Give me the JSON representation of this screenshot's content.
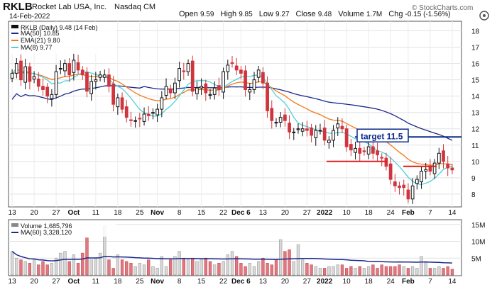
{
  "header": {
    "ticker": "RKLB",
    "company": "Rocket Lab USA, Inc.",
    "exchange": "Nasdaq CM",
    "date": "14-Feb-2022",
    "open_label": "Open",
    "open": "9.59",
    "high_label": "High",
    "high": "9.85",
    "low_label": "Low",
    "low": "9.27",
    "close_label": "Close",
    "close": "9.48",
    "volume_label": "Volume",
    "volume": "1.7M",
    "chg_label": "Chg",
    "chg": "-0.15 (-1.56%)",
    "watermark": "© StockCharts.com"
  },
  "legend": {
    "price": "RKLB (Daily) 9.48 (14 Feb)",
    "ma50": "MA(50) 10.85",
    "ema21": "EMA(21) 9.80",
    "ma8": "MA(8) 9.77",
    "volume": "Volume 1,685,796",
    "ma60": "MA(60) 3,328,120"
  },
  "annotation": {
    "target_label": "target 11.5",
    "target_level": 11.5,
    "support_level": 10.0,
    "support2_level": 9.7
  },
  "colors": {
    "up": "#111111",
    "down": "#d0343c",
    "ma50": "#1a2a8c",
    "ema21": "#f07a18",
    "ma8": "#4fd0d8",
    "vol_down": "#e07880",
    "vol_up": "#d8d8d8",
    "vol_ma": "#1a2a8c",
    "target": "#0b2a8c",
    "support": "#e01b1b"
  },
  "chart_data": [
    {
      "type": "candlestick",
      "title": "RKLB (Daily)",
      "ylim": [
        7.3,
        18.5
      ],
      "yticks": [
        8,
        9,
        10,
        11,
        12,
        13,
        14,
        15,
        16,
        17,
        18
      ],
      "xlabels": [
        "13",
        "20",
        "27",
        "Oct",
        "11",
        "18",
        "25",
        "Nov",
        "8",
        "15",
        "22",
        "Dec 6",
        "13",
        "20",
        "27",
        "2022",
        "10",
        "18",
        "24",
        "Feb",
        "7",
        "14"
      ],
      "closes": [
        15.4,
        16.0,
        15.0,
        15.8,
        14.9,
        15.2,
        14.6,
        14.4,
        14.0,
        14.1,
        15.5,
        15.7,
        16.0,
        15.3,
        16.2,
        15.6,
        15.3,
        14.3,
        14.9,
        15.0,
        15.3,
        15.3,
        14.6,
        13.5,
        13.9,
        13.2,
        12.7,
        12.5,
        12.5,
        12.6,
        12.9,
        12.8,
        13.0,
        13.2,
        13.9,
        14.6,
        14.2,
        14.8,
        15.7,
        15.5,
        16.0,
        14.3,
        14.5,
        14.6,
        14.2,
        14.1,
        14.5,
        14.4,
        15.5,
        15.9,
        16.0,
        15.6,
        15.4,
        14.4,
        14.4,
        15.0,
        15.6,
        14.8,
        13.1,
        12.5,
        12.4,
        12.7,
        12.5,
        11.8,
        11.8,
        12.0,
        12.0,
        11.9,
        11.6,
        11.9,
        11.9,
        11.3,
        11.3,
        11.9,
        12.3,
        12.0,
        10.9,
        10.7,
        10.8,
        10.5,
        10.6,
        10.9,
        10.5,
        10.4,
        10.2,
        9.7,
        8.9,
        8.5,
        8.4,
        8.4,
        7.7,
        8.5,
        8.9,
        9.4,
        9.5,
        9.4,
        9.9,
        10.5,
        10.0,
        9.6,
        9.48
      ],
      "bars": 101
    },
    {
      "type": "bar",
      "title": "Volume",
      "ylim": [
        0,
        16000000
      ],
      "yticks_labels": [
        "5M",
        "10M",
        "15M"
      ],
      "yticks": [
        5000000,
        10000000,
        15000000
      ],
      "volumes": [
        7.0,
        5.0,
        4.5,
        4.0,
        3.5,
        4.5,
        3.0,
        4.0,
        3.0,
        3.5,
        5.0,
        6.5,
        7.0,
        4.0,
        6.0,
        3.5,
        6.5,
        11.0,
        4.5,
        5.0,
        6.5,
        14.5,
        4.5,
        2.0,
        6.0,
        4.5,
        4.0,
        3.5,
        2.5,
        3.5,
        3.0,
        4.5,
        2.5,
        2.0,
        5.5,
        2.5,
        4.5,
        5.5,
        7.0,
        5.0,
        4.5,
        5.0,
        4.0,
        4.5,
        5.0,
        4.0,
        3.0,
        3.5,
        4.0,
        6.0,
        7.0,
        5.5,
        3.5,
        2.5,
        3.5,
        2.5,
        4.0,
        5.0,
        3.5,
        3.0,
        4.5,
        10.5,
        7.0,
        7.5,
        4.0,
        9.0,
        4.5,
        3.5,
        3.0,
        2.5,
        2.0,
        2.0,
        2.5,
        2.5,
        3.0,
        3.0,
        2.0,
        2.5,
        2.0,
        2.5,
        2.0,
        2.5,
        3.0,
        2.0,
        3.0,
        2.5,
        2.5,
        2.5,
        3.0,
        2.5,
        2.0,
        2.5,
        2.0,
        5.5,
        4.0,
        2.0,
        2.0,
        2.5,
        2.0,
        2.5,
        1.7
      ]
    }
  ]
}
